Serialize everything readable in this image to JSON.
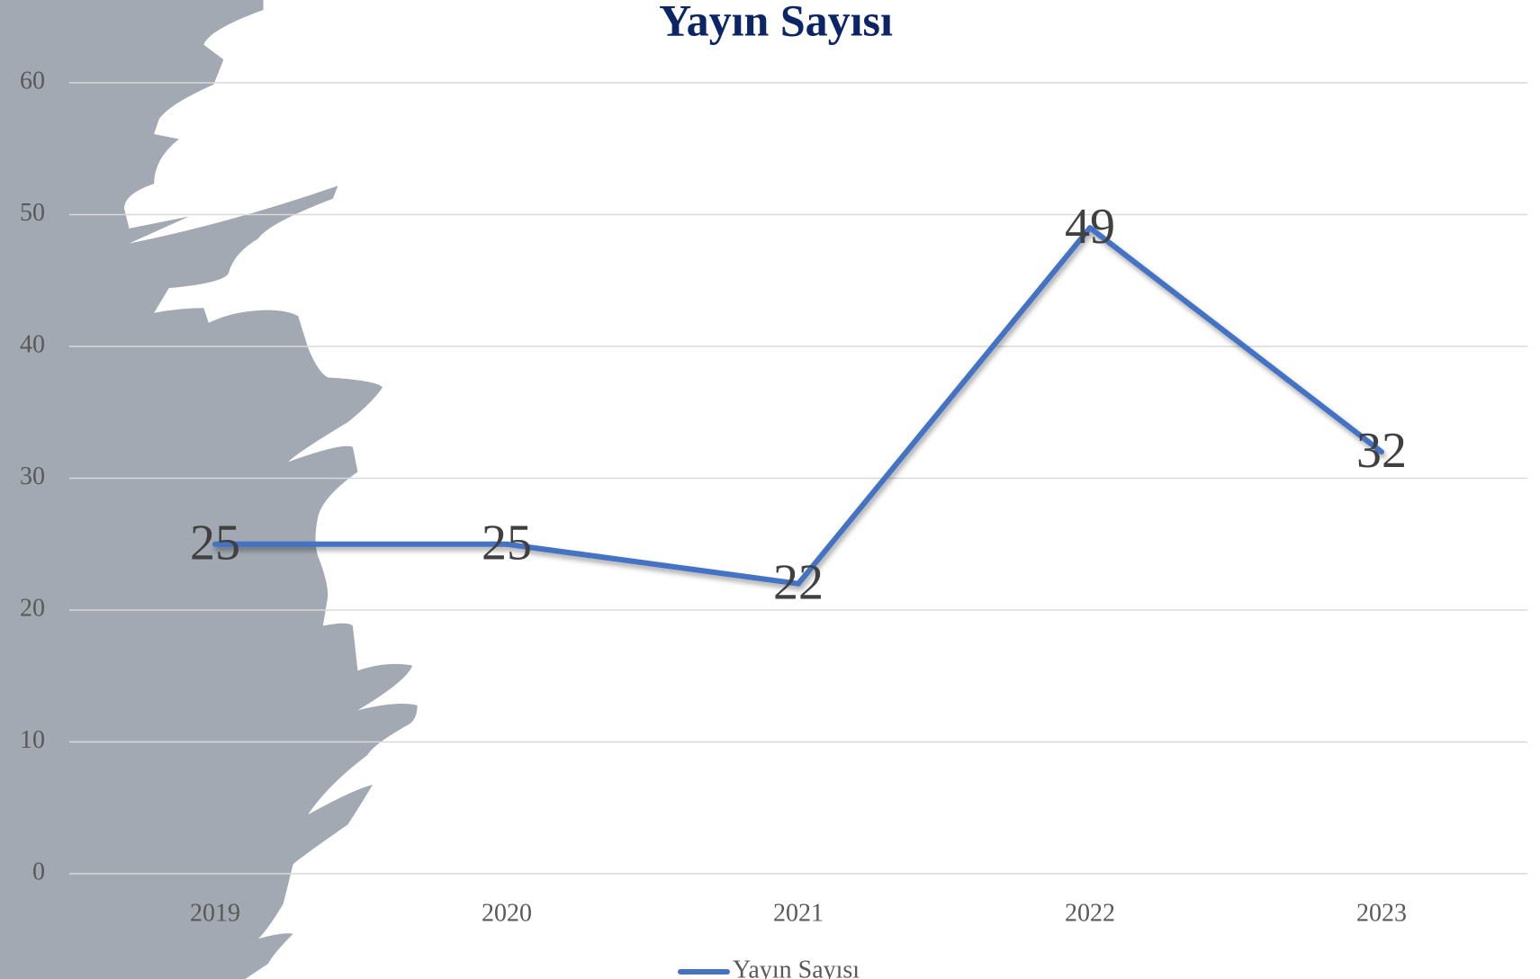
{
  "chart_data": {
    "type": "line",
    "title": "Yayın Sayısı",
    "categories": [
      "2019",
      "2020",
      "2021",
      "2022",
      "2023"
    ],
    "series": [
      {
        "name": "Yayın Sayısı",
        "color": "#4472c4",
        "values": [
          25,
          25,
          22,
          49,
          32
        ]
      }
    ],
    "ylim": [
      0,
      60
    ],
    "yticks": [
      0,
      10,
      20,
      30,
      40,
      50,
      60
    ],
    "grid": true,
    "legend": "bottom",
    "data_labels": true
  }
}
